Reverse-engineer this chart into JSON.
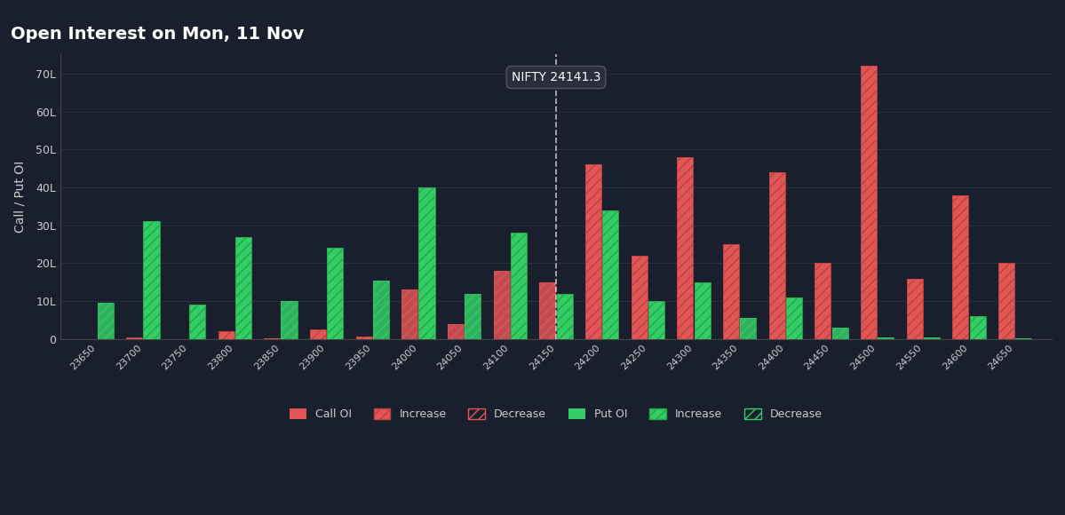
{
  "title": "Open Interest on Mon, 11 Nov",
  "nifty_label": "NIFTY 24141.3",
  "nifty_strike": 24150,
  "ylabel": "Call / Put OI",
  "background_color": "#1a1f2e",
  "plot_bg_color": "#1a1f2e",
  "grid_color": "#2a2f3e",
  "text_color": "#cccccc",
  "strikes": [
    23650,
    23700,
    23750,
    23800,
    23850,
    23900,
    23950,
    24000,
    24050,
    24100,
    24150,
    24200,
    24250,
    24300,
    24350,
    24400,
    24450,
    24500,
    24550,
    24600,
    24650
  ],
  "call_oi": [
    0,
    0.5,
    0,
    2,
    0.3,
    2.5,
    0.8,
    13,
    4,
    18,
    15,
    46,
    22,
    48,
    25,
    44,
    20,
    72,
    16,
    38,
    20
  ],
  "call_increase": [
    0,
    0.5,
    0,
    2,
    0,
    2.5,
    0.8,
    0,
    0,
    0,
    0,
    46,
    22,
    48,
    25,
    44,
    20,
    72,
    16,
    38,
    20
  ],
  "call_decrease": [
    0,
    0,
    0,
    0,
    0.3,
    0,
    0,
    13,
    4,
    18,
    15,
    0,
    0,
    0,
    0,
    0,
    0,
    0,
    0,
    0,
    0
  ],
  "put_oi": [
    9.5,
    31,
    9,
    27,
    10,
    24,
    15.5,
    40,
    12,
    28,
    12,
    34,
    10,
    15,
    5.5,
    11,
    3,
    0.5,
    0.5,
    6,
    0.3
  ],
  "put_increase": [
    0,
    31,
    9,
    27,
    0,
    24,
    0,
    40,
    0,
    28,
    12,
    34,
    10,
    15,
    0,
    11,
    0,
    0,
    0,
    6,
    0
  ],
  "put_decrease": [
    9.5,
    0,
    0,
    0,
    10,
    0,
    15.5,
    0,
    12,
    0,
    0,
    0,
    0,
    0,
    5.5,
    0,
    3,
    0.5,
    0.5,
    0,
    0.3
  ],
  "call_base_color": "#e05555",
  "call_increase_color": "#e05555",
  "call_decrease_color": "#e05555",
  "put_base_color": "#33cc66",
  "put_increase_color": "#33cc66",
  "put_decrease_color": "#33cc66",
  "ylim": [
    0,
    75
  ],
  "yticks": [
    0,
    10,
    20,
    30,
    40,
    50,
    60,
    70
  ],
  "ytick_labels": [
    "0",
    "10L",
    "20L",
    "30L",
    "40L",
    "50L",
    "60L",
    "70L"
  ]
}
